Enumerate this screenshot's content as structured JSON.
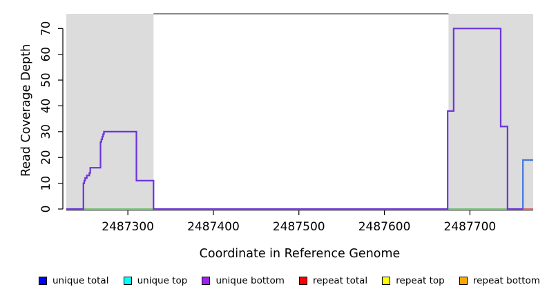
{
  "chart_data": {
    "type": "line",
    "subtype": "step-coverage",
    "title": "",
    "xlabel": "Coordinate in Reference Genome",
    "ylabel": "Read Coverage Depth",
    "xlim": [
      2487228,
      2487774
    ],
    "ylim": [
      0,
      75.7
    ],
    "x_ticks": [
      2487300,
      2487400,
      2487500,
      2487600,
      2487700
    ],
    "y_ticks": [
      0,
      10,
      20,
      30,
      40,
      50,
      60,
      70
    ],
    "grid": false,
    "legend_position": "bottom",
    "shaded_regions": [
      {
        "x1": 2487228,
        "x2": 2487330,
        "color": "#DCDCDC"
      },
      {
        "x1": 2487675,
        "x2": 2487774,
        "color": "#DCDCDC"
      }
    ],
    "top_bar": {
      "x1": 2487330,
      "x2": 2487675,
      "color": "#8A8A8A"
    },
    "series": [
      {
        "name": "green baseline",
        "color": "#55BB55",
        "width": 1.6,
        "points": [
          [
            2487228,
            0
          ],
          [
            2487761,
            0
          ]
        ]
      },
      {
        "name": "repeat total",
        "color": "#DD5555",
        "width": 1.8,
        "points": [
          [
            2487761,
            0
          ],
          [
            2487774,
            0
          ]
        ]
      },
      {
        "name": "unique total",
        "color": "#4477DD",
        "width": 2.2,
        "points": [
          [
            2487762,
            0
          ],
          [
            2487762,
            19
          ],
          [
            2487774,
            19
          ]
        ]
      },
      {
        "name": "unique bottom",
        "color": "#6B33DB",
        "width": 2.2,
        "points": [
          [
            2487228,
            0
          ],
          [
            2487248,
            0
          ],
          [
            2487248,
            10
          ],
          [
            2487249,
            10
          ],
          [
            2487249,
            11
          ],
          [
            2487250,
            11
          ],
          [
            2487250,
            12
          ],
          [
            2487252,
            12
          ],
          [
            2487252,
            13
          ],
          [
            2487255,
            13
          ],
          [
            2487255,
            14
          ],
          [
            2487256,
            14
          ],
          [
            2487256,
            16
          ],
          [
            2487268,
            16
          ],
          [
            2487268,
            26
          ],
          [
            2487269,
            26
          ],
          [
            2487269,
            27
          ],
          [
            2487270,
            27
          ],
          [
            2487270,
            28
          ],
          [
            2487271,
            28
          ],
          [
            2487271,
            29
          ],
          [
            2487272,
            29
          ],
          [
            2487272,
            30
          ],
          [
            2487310,
            30
          ],
          [
            2487310,
            11
          ],
          [
            2487330,
            11
          ],
          [
            2487330,
            0
          ],
          [
            2487674,
            0
          ],
          [
            2487674,
            38
          ],
          [
            2487681,
            38
          ],
          [
            2487681,
            70
          ],
          [
            2487736,
            70
          ],
          [
            2487736,
            32
          ],
          [
            2487744,
            32
          ],
          [
            2487744,
            0
          ],
          [
            2487762,
            0
          ]
        ]
      }
    ]
  },
  "legend": {
    "items": [
      {
        "label": "unique total",
        "color": "#0000FF"
      },
      {
        "label": "unique top",
        "color": "#00FFFF"
      },
      {
        "label": "unique bottom",
        "color": "#A020F0"
      },
      {
        "label": "repeat total",
        "color": "#FF0000"
      },
      {
        "label": "repeat top",
        "color": "#FFFF00"
      },
      {
        "label": "repeat bottom",
        "color": "#FFA500"
      }
    ]
  }
}
